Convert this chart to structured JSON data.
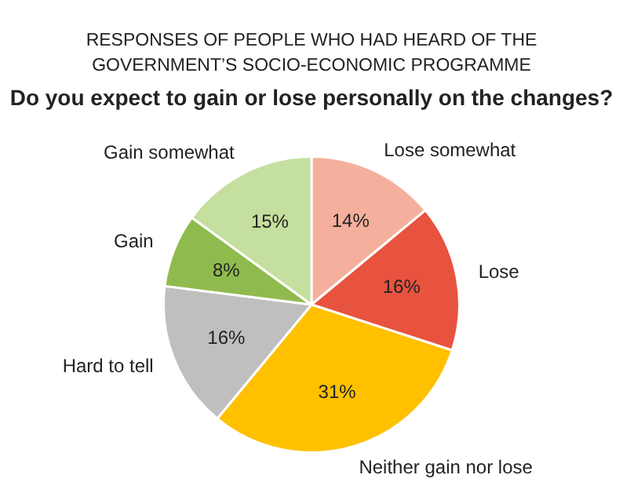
{
  "chart_data": {
    "type": "pie",
    "title": "RESPONSES OF PEOPLE WHO HAD HEARD OF THE GOVERNMENT’S SOCIO-ECONOMIC PROGRAMME",
    "subtitle": "Do you expect to gain or lose personally on the changes?",
    "categories": [
      "Lose somewhat",
      "Lose",
      "Neither gain nor lose",
      "Hard to tell",
      "Gain",
      "Gain somewhat"
    ],
    "values": [
      14,
      16,
      31,
      16,
      8,
      15
    ],
    "colors": [
      "#f4b09c",
      "#e8533f",
      "#ffc000",
      "#bfbfbf",
      "#8fbb4e",
      "#c5df9f"
    ],
    "value_labels": [
      "14%",
      "16%",
      "31%",
      "16%",
      "8%",
      "15%"
    ],
    "legend": false
  }
}
